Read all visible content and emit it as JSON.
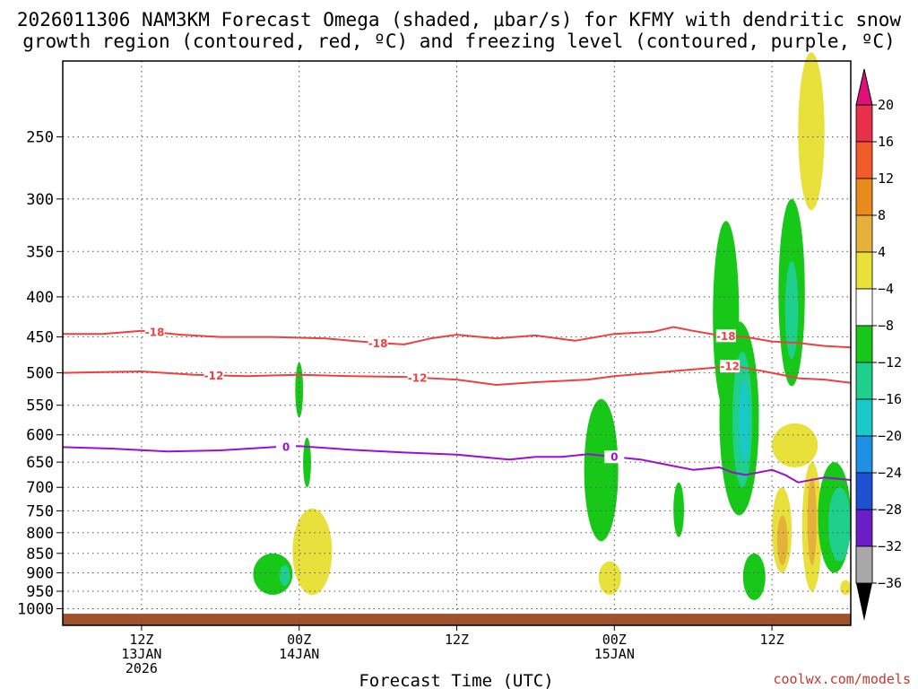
{
  "chart_data": {
    "type": "heatmap",
    "title_line1": "2026011306 NAM3KM Forecast Omega (shaded, μbar/s) for KFMY with dendritic snow",
    "title_line2": "growth region (contoured, red, ºC) and freezing level (contoured, purple, ºC)",
    "xlabel": "Forecast Time (UTC)",
    "ylabel": "",
    "credit": "coolwx.com/models",
    "y_axis": {
      "scale": "log-pressure",
      "range_hpa": [
        200,
        1050
      ],
      "ticks": [
        250,
        300,
        350,
        400,
        450,
        500,
        550,
        600,
        650,
        700,
        750,
        800,
        850,
        900,
        950,
        1000
      ]
    },
    "x_axis": {
      "range_hours_from_13JAN06Z": [
        0,
        60
      ],
      "ticks": [
        {
          "hour": 6,
          "line1": "12Z",
          "line2": "13JAN",
          "line3": "2026"
        },
        {
          "hour": 18,
          "line1": "00Z",
          "line2": "14JAN",
          "line3": ""
        },
        {
          "hour": 30,
          "line1": "12Z",
          "line2": "",
          "line3": ""
        },
        {
          "hour": 42,
          "line1": "00Z",
          "line2": "15JAN",
          "line3": ""
        },
        {
          "hour": 54,
          "line1": "12Z",
          "line2": "",
          "line3": ""
        }
      ]
    },
    "colorbar": {
      "levels": [
        "20",
        "16",
        "12",
        "8",
        "4",
        "−4",
        "−8",
        "−12",
        "−16",
        "−20",
        "−24",
        "−28",
        "−32",
        "−36"
      ],
      "colors": [
        "#e8304a",
        "#f25c2b",
        "#e88a1c",
        "#e6b13a",
        "#e8e03b",
        "#ffffff",
        "#18c818",
        "#1ed08c",
        "#19c8c8",
        "#1e90e6",
        "#1e50d2",
        "#6a1ec8",
        "#9a10b8",
        "#a8a8a8"
      ],
      "top_arrow_color": "#e0107a",
      "bottom_arrow_color": "#000000"
    },
    "contours": [
      {
        "name": "-18C isotherm",
        "label": "-18",
        "color": "#ee4040",
        "points": [
          [
            0,
            446
          ],
          [
            3,
            446
          ],
          [
            6,
            442
          ],
          [
            9,
            447
          ],
          [
            12,
            450
          ],
          [
            16,
            450
          ],
          [
            20,
            452
          ],
          [
            24,
            458
          ],
          [
            26,
            460
          ],
          [
            28,
            452
          ],
          [
            30,
            447
          ],
          [
            33,
            452
          ],
          [
            36,
            448
          ],
          [
            39,
            455
          ],
          [
            40,
            452
          ],
          [
            42,
            446
          ],
          [
            45,
            443
          ],
          [
            46.5,
            437
          ],
          [
            48,
            442
          ],
          [
            50,
            448
          ],
          [
            52,
            450
          ],
          [
            54,
            456
          ],
          [
            56,
            458
          ],
          [
            58,
            462
          ],
          [
            60,
            464
          ]
        ],
        "label_hours": [
          7,
          24,
          50.5
        ]
      },
      {
        "name": "-12C isotherm",
        "label": "-12",
        "color": "#ee4040",
        "points": [
          [
            0,
            500
          ],
          [
            6,
            498
          ],
          [
            10,
            503
          ],
          [
            14,
            505
          ],
          [
            18,
            503
          ],
          [
            22,
            505
          ],
          [
            26,
            506
          ],
          [
            30,
            510
          ],
          [
            33,
            518
          ],
          [
            36,
            514
          ],
          [
            40,
            510
          ],
          [
            42,
            505
          ],
          [
            45,
            500
          ],
          [
            48,
            495
          ],
          [
            50,
            492
          ],
          [
            51,
            490
          ],
          [
            52,
            493
          ],
          [
            54,
            500
          ],
          [
            56,
            508
          ],
          [
            58,
            510
          ],
          [
            60,
            515
          ]
        ],
        "label_hours": [
          11.5,
          27,
          50.8
        ]
      },
      {
        "name": "0C freezing level",
        "label": "0",
        "color": "#9b10d0",
        "points": [
          [
            0,
            622
          ],
          [
            4,
            625
          ],
          [
            8,
            630
          ],
          [
            12,
            628
          ],
          [
            16,
            622
          ],
          [
            18,
            620
          ],
          [
            22,
            627
          ],
          [
            26,
            632
          ],
          [
            30,
            636
          ],
          [
            34,
            645
          ],
          [
            36,
            640
          ],
          [
            38,
            640
          ],
          [
            40,
            635
          ],
          [
            42,
            640
          ],
          [
            44,
            645
          ],
          [
            46,
            655
          ],
          [
            48,
            665
          ],
          [
            50,
            660
          ],
          [
            51,
            670
          ],
          [
            52,
            675
          ],
          [
            54,
            665
          ],
          [
            55,
            675
          ],
          [
            56,
            690
          ],
          [
            58,
            680
          ],
          [
            60,
            685
          ]
        ],
        "label_hours": [
          17,
          42
        ]
      }
    ],
    "shaded_regions": [
      {
        "value_range": "-4 to -8",
        "color": "#18c818",
        "hour_range": [
          14.5,
          17.5
        ],
        "pressure_range": [
          850,
          960
        ]
      },
      {
        "value_range": "-8 to -12",
        "color": "#1ed08c",
        "hour_range": [
          16.5,
          17.3
        ],
        "pressure_range": [
          880,
          935
        ]
      },
      {
        "value_range": "4 to 8",
        "color": "#e8e03b",
        "hour_range": [
          17.5,
          20.5
        ],
        "pressure_range": [
          745,
          960
        ]
      },
      {
        "value_range": "-4 to -8",
        "color": "#18c818",
        "hour_range": [
          17.7,
          18.3
        ],
        "pressure_range": [
          485,
          570
        ]
      },
      {
        "value_range": "-4 to -8",
        "color": "#18c818",
        "hour_range": [
          18.3,
          18.9
        ],
        "pressure_range": [
          605,
          700
        ]
      },
      {
        "value_range": "-4 to -8",
        "color": "#18c818",
        "hour_range": [
          39.7,
          42.3
        ],
        "pressure_range": [
          540,
          820
        ]
      },
      {
        "value_range": "4 to 8",
        "color": "#e8e03b",
        "hour_range": [
          40.8,
          42.5
        ],
        "pressure_range": [
          870,
          960
        ]
      },
      {
        "value_range": "-4 to -8",
        "color": "#18c818",
        "hour_range": [
          46.5,
          47.3
        ],
        "pressure_range": [
          690,
          810
        ]
      },
      {
        "value_range": "-4 to -8",
        "color": "#18c818",
        "hour_range": [
          49.5,
          51.5
        ],
        "pressure_range": [
          320,
          560
        ]
      },
      {
        "value_range": "-4 to -8",
        "color": "#18c818",
        "hour_range": [
          50.0,
          53.0
        ],
        "pressure_range": [
          430,
          760
        ]
      },
      {
        "value_range": "-8 to -12",
        "color": "#1ed08c",
        "hour_range": [
          51.0,
          52.5
        ],
        "pressure_range": [
          470,
          700
        ]
      },
      {
        "value_range": "-12 to -16",
        "color": "#19c8c8",
        "hour_range": [
          51.5,
          52.3
        ],
        "pressure_range": [
          510,
          650
        ]
      },
      {
        "value_range": "-4 to -8",
        "color": "#18c818",
        "hour_range": [
          51.8,
          53.5
        ],
        "pressure_range": [
          850,
          975
        ]
      },
      {
        "value_range": "-4 to -8",
        "color": "#18c818",
        "hour_range": [
          54.5,
          56.5
        ],
        "pressure_range": [
          300,
          520
        ]
      },
      {
        "value_range": "-8 to -12",
        "color": "#1ed08c",
        "hour_range": [
          55.0,
          56.0
        ],
        "pressure_range": [
          360,
          480
        ]
      },
      {
        "value_range": "4 to 8",
        "color": "#e8e03b",
        "hour_range": [
          56.0,
          58.0
        ],
        "pressure_range": [
          195,
          310
        ]
      },
      {
        "value_range": "4 to 8",
        "color": "#e8e03b",
        "hour_range": [
          54.0,
          57.5
        ],
        "pressure_range": [
          580,
          660
        ]
      },
      {
        "value_range": "4 to 8",
        "color": "#e8e03b",
        "hour_range": [
          54.0,
          55.5
        ],
        "pressure_range": [
          700,
          900
        ]
      },
      {
        "value_range": "8 to 12",
        "color": "#e6b13a",
        "hour_range": [
          54.4,
          55.2
        ],
        "pressure_range": [
          760,
          880
        ]
      },
      {
        "value_range": "4 to 8",
        "color": "#e8e03b",
        "hour_range": [
          56.3,
          57.8
        ],
        "pressure_range": [
          650,
          950
        ]
      },
      {
        "value_range": "8 to 12",
        "color": "#e6b13a",
        "hour_range": [
          56.7,
          57.4
        ],
        "pressure_range": [
          680,
          880
        ]
      },
      {
        "value_range": "-4 to -8",
        "color": "#18c818",
        "hour_range": [
          57.5,
          60.0
        ],
        "pressure_range": [
          650,
          900
        ]
      },
      {
        "value_range": "-8 to -12",
        "color": "#1ed08c",
        "hour_range": [
          58.3,
          60.0
        ],
        "pressure_range": [
          700,
          870
        ]
      },
      {
        "value_range": "4 to 8",
        "color": "#e8e03b",
        "hour_range": [
          59.2,
          60.0
        ],
        "pressure_range": [
          920,
          960
        ]
      }
    ],
    "surface": {
      "color": "#a0522d",
      "pressure": 1015
    }
  }
}
